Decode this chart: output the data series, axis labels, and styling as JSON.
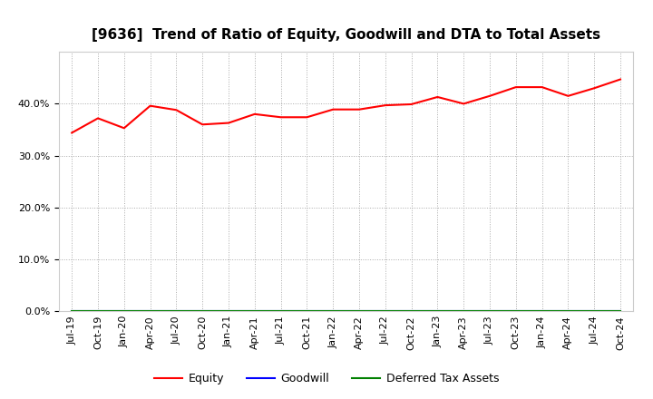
{
  "title": "[9636]  Trend of Ratio of Equity, Goodwill and DTA to Total Assets",
  "x_labels": [
    "Jul-19",
    "Oct-19",
    "Jan-20",
    "Apr-20",
    "Jul-20",
    "Oct-20",
    "Jan-21",
    "Apr-21",
    "Jul-21",
    "Oct-21",
    "Jan-22",
    "Apr-22",
    "Jul-22",
    "Oct-22",
    "Jan-23",
    "Apr-23",
    "Jul-23",
    "Oct-23",
    "Jan-24",
    "Apr-24",
    "Jul-24",
    "Oct-24"
  ],
  "equity": [
    0.344,
    0.372,
    0.353,
    0.396,
    0.388,
    0.36,
    0.363,
    0.38,
    0.374,
    0.374,
    0.389,
    0.389,
    0.397,
    0.399,
    0.413,
    0.4,
    0.415,
    0.432,
    0.432,
    0.415,
    0.43,
    0.447
  ],
  "goodwill": [
    0.0,
    0.0,
    0.0,
    0.0,
    0.0,
    0.0,
    0.0,
    0.0,
    0.0,
    0.0,
    0.0,
    0.0,
    0.0,
    0.0,
    0.0,
    0.0,
    0.0,
    0.0,
    0.0,
    0.0,
    0.0,
    0.0
  ],
  "dta": [
    0.0,
    0.0,
    0.0,
    0.0,
    0.0,
    0.0,
    0.0,
    0.0,
    0.0,
    0.0,
    0.0,
    0.0,
    0.0,
    0.0,
    0.0,
    0.0,
    0.0,
    0.0,
    0.0,
    0.0,
    0.0,
    0.0
  ],
  "equity_color": "#FF0000",
  "goodwill_color": "#0000FF",
  "dta_color": "#008000",
  "ylim": [
    0.0,
    0.5
  ],
  "yticks": [
    0.0,
    0.1,
    0.2,
    0.3,
    0.4
  ],
  "background_color": "#FFFFFF",
  "plot_bg_color": "#FFFFFF",
  "grid_color": "#AAAAAA",
  "legend_labels": [
    "Equity",
    "Goodwill",
    "Deferred Tax Assets"
  ],
  "title_fontsize": 11,
  "tick_fontsize": 8
}
